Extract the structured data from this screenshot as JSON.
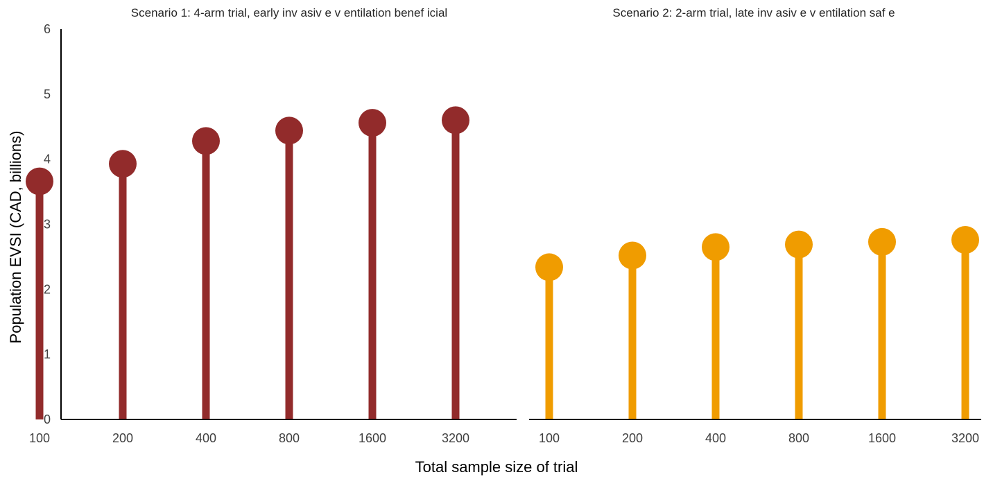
{
  "chart_data": {
    "type": "lollipop",
    "ylabel": "Population EVSI (CAD, billions)",
    "xlabel": "Total sample size of trial",
    "ylim": [
      0,
      6
    ],
    "yticks": [
      "0",
      "1",
      "2",
      "3",
      "4",
      "5",
      "6"
    ],
    "grid": false,
    "panels": [
      {
        "title": "Scenario 1: 4-arm trial, early inv asiv e v entilation benef icial",
        "categories": [
          "100",
          "200",
          "400",
          "800",
          "1600",
          "3200"
        ],
        "values": [
          3.66,
          3.93,
          4.28,
          4.44,
          4.56,
          4.6
        ],
        "color": "#922b2b"
      },
      {
        "title": "Scenario 2: 2-arm trial, late inv asiv e v entilation saf e",
        "categories": [
          "100",
          "200",
          "400",
          "800",
          "1600",
          "3200"
        ],
        "values": [
          2.34,
          2.52,
          2.65,
          2.69,
          2.73,
          2.76
        ],
        "color": "#f09c00"
      }
    ]
  }
}
